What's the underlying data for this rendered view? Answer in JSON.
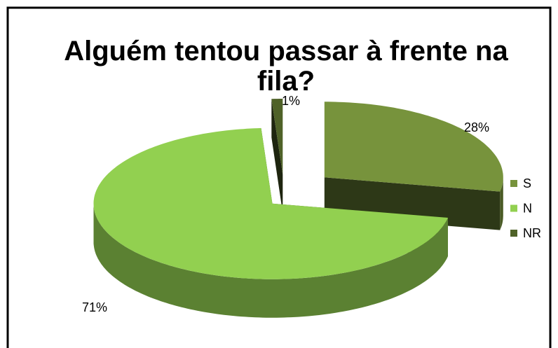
{
  "chart_data": {
    "type": "pie3d",
    "title": "Alguém tentou passar à frente na fila?",
    "categories": [
      "S",
      "N",
      "NR"
    ],
    "values": [
      28,
      71,
      1
    ],
    "value_labels": [
      "28%",
      "71%",
      "1%"
    ],
    "colors": [
      "#77933c",
      "#92d050",
      "#4f6228"
    ],
    "legend": "right"
  }
}
